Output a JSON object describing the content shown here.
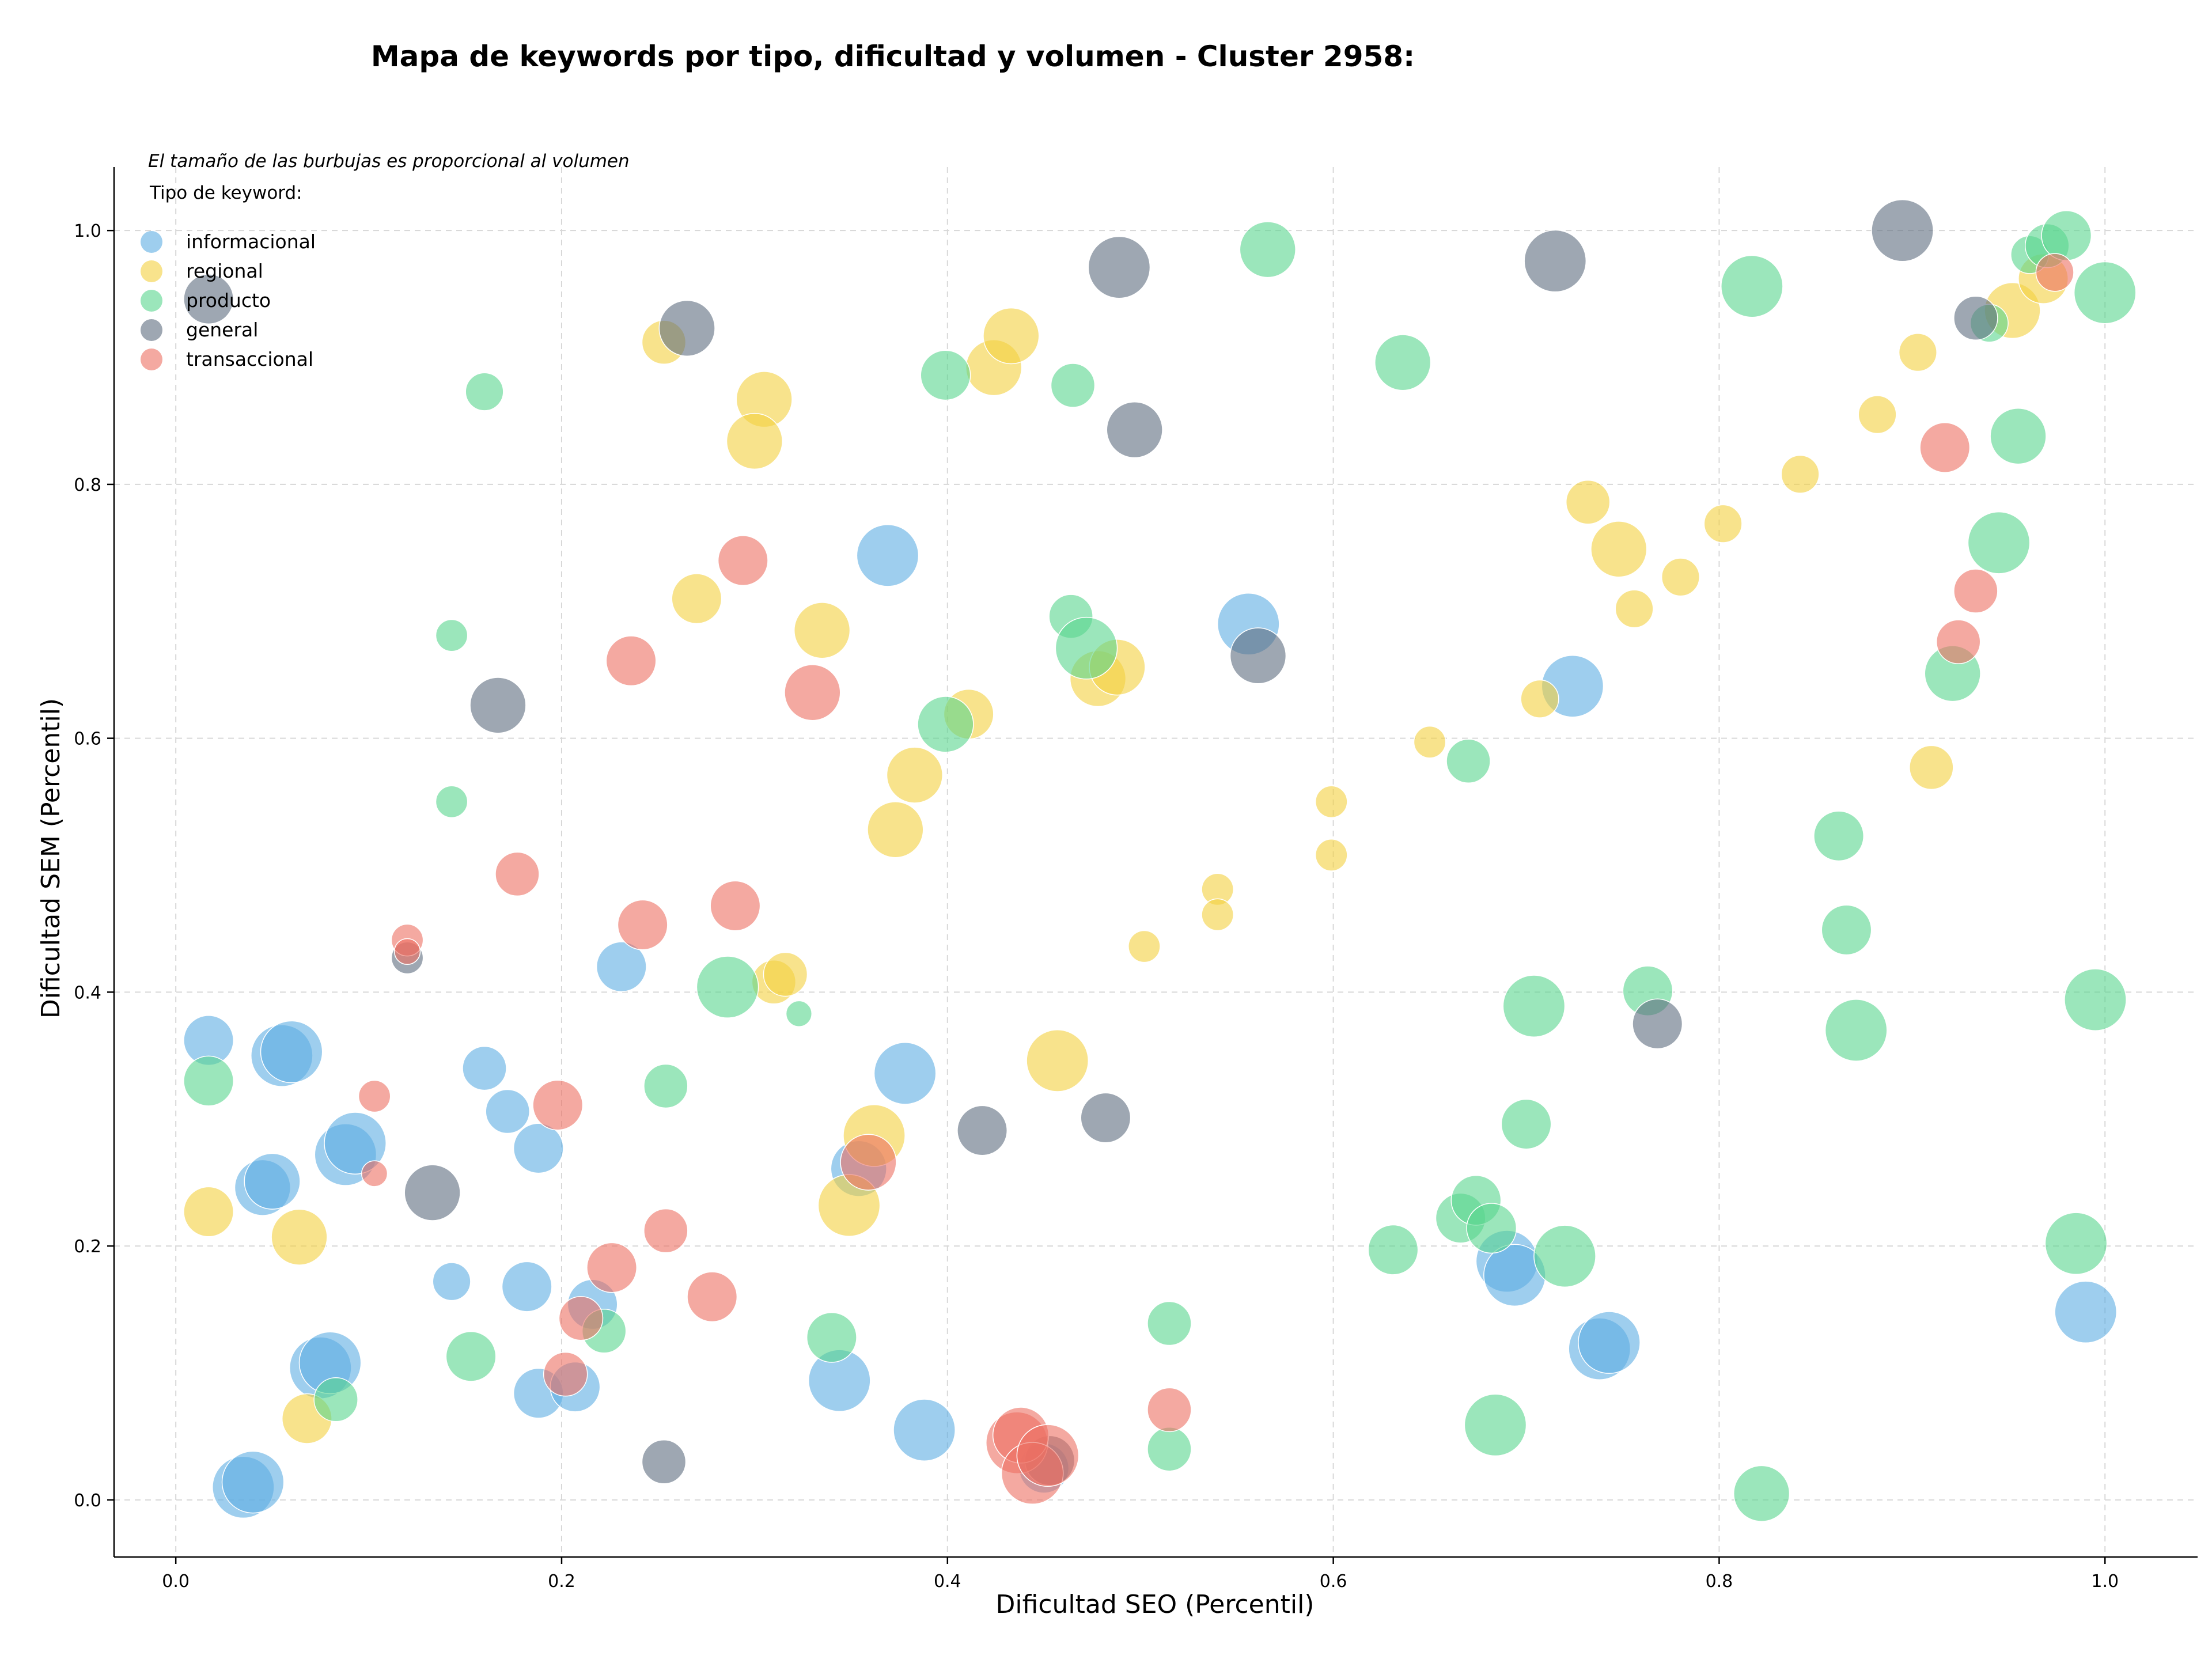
{
  "chart_data": {
    "type": "scatter",
    "title": "Mapa de keywords por tipo, dificultad y volumen - Cluster 2958:",
    "xlabel": "Dificultad SEO (Percentil)",
    "ylabel": "Dificultad SEM (Percentil)",
    "xlim": [
      -0.032,
      1.048
    ],
    "ylim": [
      -0.045,
      1.05
    ],
    "xticks": [
      0.0,
      0.2,
      0.4,
      0.6,
      0.8,
      1.0
    ],
    "yticks": [
      0.0,
      0.2,
      0.4,
      0.6,
      0.8,
      1.0
    ],
    "xtick_labels": [
      "0.0",
      "0.2",
      "0.4",
      "0.6",
      "0.8",
      "1.0"
    ],
    "ytick_labels": [
      "0.0",
      "0.2",
      "0.4",
      "0.6",
      "0.8",
      "1.0"
    ],
    "grid": true,
    "annotation": "El tamaño de las burbujas es proporcional al volumen",
    "legend": {
      "title": "Tipo de keyword:",
      "placement": "top-left",
      "entries": [
        "informacional",
        "regional",
        "producto",
        "general",
        "transaccional"
      ]
    },
    "size_note": "bubble radius in series points is a relative volume index (0-10)",
    "series": [
      {
        "name": "informacional",
        "color": "#5DADE2",
        "points": [
          [
            0.017,
            0.362,
            6
          ],
          [
            0.055,
            0.35,
            8
          ],
          [
            0.06,
            0.353,
            8
          ],
          [
            0.045,
            0.246,
            7
          ],
          [
            0.05,
            0.251,
            7
          ],
          [
            0.088,
            0.272,
            8
          ],
          [
            0.093,
            0.281,
            8
          ],
          [
            0.075,
            0.104,
            8
          ],
          [
            0.08,
            0.108,
            8
          ],
          [
            0.035,
            0.01,
            8
          ],
          [
            0.04,
            0.014,
            8
          ],
          [
            0.16,
            0.34,
            5
          ],
          [
            0.172,
            0.306,
            5
          ],
          [
            0.188,
            0.277,
            6
          ],
          [
            0.143,
            0.172,
            4
          ],
          [
            0.182,
            0.168,
            6
          ],
          [
            0.188,
            0.084,
            6
          ],
          [
            0.207,
            0.089,
            6
          ],
          [
            0.216,
            0.154,
            6
          ],
          [
            0.231,
            0.42,
            6
          ],
          [
            0.369,
            0.744,
            8
          ],
          [
            0.378,
            0.336,
            8
          ],
          [
            0.354,
            0.261,
            7
          ],
          [
            0.344,
            0.094,
            8
          ],
          [
            0.388,
            0.055,
            8
          ],
          [
            0.556,
            0.69,
            8
          ],
          [
            0.724,
            0.641,
            8
          ],
          [
            0.69,
            0.188,
            8
          ],
          [
            0.694,
            0.177,
            8
          ],
          [
            0.738,
            0.119,
            8
          ],
          [
            0.743,
            0.124,
            8
          ],
          [
            0.99,
            0.148,
            8
          ],
          [
            0.45,
            0.025,
            6
          ]
        ]
      },
      {
        "name": "regional",
        "color": "#F4D03F",
        "points": [
          [
            0.017,
            0.227,
            6
          ],
          [
            0.064,
            0.207,
            7
          ],
          [
            0.068,
            0.064,
            6
          ],
          [
            0.253,
            0.912,
            5
          ],
          [
            0.27,
            0.71,
            6
          ],
          [
            0.305,
            0.867,
            7
          ],
          [
            0.3,
            0.834,
            7
          ],
          [
            0.335,
            0.685,
            7
          ],
          [
            0.383,
            0.571,
            7
          ],
          [
            0.373,
            0.528,
            7
          ],
          [
            0.424,
            0.892,
            7
          ],
          [
            0.433,
            0.917,
            7
          ],
          [
            0.411,
            0.619,
            6
          ],
          [
            0.478,
            0.647,
            7
          ],
          [
            0.488,
            0.656,
            7
          ],
          [
            0.31,
            0.408,
            5
          ],
          [
            0.316,
            0.414,
            5
          ],
          [
            0.349,
            0.232,
            8
          ],
          [
            0.362,
            0.287,
            8
          ],
          [
            0.457,
            0.346,
            8
          ],
          [
            0.502,
            0.436,
            3
          ],
          [
            0.54,
            0.481,
            3
          ],
          [
            0.54,
            0.461,
            3
          ],
          [
            0.599,
            0.55,
            3
          ],
          [
            0.599,
            0.508,
            3
          ],
          [
            0.65,
            0.597,
            3
          ],
          [
            0.707,
            0.631,
            4
          ],
          [
            0.732,
            0.786,
            5
          ],
          [
            0.748,
            0.749,
            7
          ],
          [
            0.756,
            0.702,
            4
          ],
          [
            0.78,
            0.727,
            4
          ],
          [
            0.802,
            0.769,
            4
          ],
          [
            0.842,
            0.808,
            4
          ],
          [
            0.882,
            0.855,
            4
          ],
          [
            0.903,
            0.904,
            4
          ],
          [
            0.91,
            0.577,
            5
          ],
          [
            0.952,
            0.937,
            7
          ],
          [
            0.968,
            0.962,
            6
          ]
        ]
      },
      {
        "name": "producto",
        "color": "#58D68D",
        "points": [
          [
            0.017,
            0.33,
            6
          ],
          [
            0.083,
            0.079,
            5
          ],
          [
            0.143,
            0.681,
            3
          ],
          [
            0.143,
            0.55,
            3
          ],
          [
            0.16,
            0.873,
            4
          ],
          [
            0.153,
            0.113,
            6
          ],
          [
            0.222,
            0.133,
            5
          ],
          [
            0.254,
            0.326,
            5
          ],
          [
            0.286,
            0.404,
            8
          ],
          [
            0.34,
            0.128,
            6
          ],
          [
            0.323,
            0.383,
            2
          ],
          [
            0.399,
            0.886,
            6
          ],
          [
            0.399,
            0.611,
            7
          ],
          [
            0.464,
            0.696,
            5
          ],
          [
            0.465,
            0.878,
            5
          ],
          [
            0.472,
            0.671,
            8
          ],
          [
            0.515,
            0.139,
            5
          ],
          [
            0.515,
            0.04,
            5
          ],
          [
            0.566,
            0.985,
            7
          ],
          [
            0.636,
            0.896,
            7
          ],
          [
            0.631,
            0.197,
            6
          ],
          [
            0.67,
            0.582,
            5
          ],
          [
            0.666,
            0.222,
            6
          ],
          [
            0.674,
            0.236,
            6
          ],
          [
            0.682,
            0.214,
            6
          ],
          [
            0.7,
            0.296,
            6
          ],
          [
            0.704,
            0.389,
            8
          ],
          [
            0.72,
            0.192,
            8
          ],
          [
            0.763,
            0.401,
            6
          ],
          [
            0.684,
            0.059,
            8
          ],
          [
            0.817,
            0.956,
            8
          ],
          [
            0.822,
            0.005,
            7
          ],
          [
            0.862,
            0.523,
            6
          ],
          [
            0.866,
            0.449,
            6
          ],
          [
            0.871,
            0.37,
            8
          ],
          [
            0.921,
            0.651,
            7
          ],
          [
            0.945,
            0.754,
            8
          ],
          [
            0.955,
            0.838,
            7
          ],
          [
            0.94,
            0.927,
            4
          ],
          [
            0.961,
            0.981,
            4
          ],
          [
            0.97,
            0.988,
            5
          ],
          [
            0.98,
            0.996,
            6
          ],
          [
            1.0,
            0.951,
            8
          ],
          [
            0.995,
            0.394,
            8
          ],
          [
            0.985,
            0.202,
            8
          ]
        ]
      },
      {
        "name": "general",
        "color": "#5D6D7E",
        "points": [
          [
            0.017,
            0.946,
            6
          ],
          [
            0.133,
            0.242,
            7
          ],
          [
            0.167,
            0.626,
            7
          ],
          [
            0.265,
            0.923,
            7
          ],
          [
            0.253,
            0.03,
            5
          ],
          [
            0.418,
            0.291,
            6
          ],
          [
            0.482,
            0.301,
            6
          ],
          [
            0.489,
            0.971,
            8
          ],
          [
            0.497,
            0.843,
            7
          ],
          [
            0.561,
            0.665,
            7
          ],
          [
            0.715,
            0.976,
            8
          ],
          [
            0.768,
            0.375,
            6
          ],
          [
            0.895,
            1.0,
            8
          ],
          [
            0.933,
            0.931,
            5
          ],
          [
            0.12,
            0.427,
            3
          ],
          [
            0.453,
            0.031,
            6
          ]
        ]
      },
      {
        "name": "transaccional",
        "color": "#EC7063",
        "points": [
          [
            0.103,
            0.318,
            3
          ],
          [
            0.103,
            0.257,
            2
          ],
          [
            0.12,
            0.441,
            3
          ],
          [
            0.12,
            0.432,
            2
          ],
          [
            0.177,
            0.493,
            5
          ],
          [
            0.198,
            0.311,
            6
          ],
          [
            0.202,
            0.099,
            5
          ],
          [
            0.21,
            0.143,
            5
          ],
          [
            0.226,
            0.183,
            6
          ],
          [
            0.236,
            0.661,
            6
          ],
          [
            0.242,
            0.453,
            6
          ],
          [
            0.254,
            0.212,
            5
          ],
          [
            0.278,
            0.16,
            6
          ],
          [
            0.29,
            0.468,
            6
          ],
          [
            0.294,
            0.74,
            6
          ],
          [
            0.33,
            0.636,
            7
          ],
          [
            0.359,
            0.266,
            7
          ],
          [
            0.436,
            0.045,
            8
          ],
          [
            0.438,
            0.051,
            7
          ],
          [
            0.444,
            0.021,
            8
          ],
          [
            0.452,
            0.035,
            8
          ],
          [
            0.515,
            0.071,
            5
          ],
          [
            0.917,
            0.829,
            6
          ],
          [
            0.933,
            0.716,
            5
          ],
          [
            0.924,
            0.676,
            5
          ],
          [
            0.974,
            0.967,
            4
          ]
        ]
      }
    ]
  }
}
